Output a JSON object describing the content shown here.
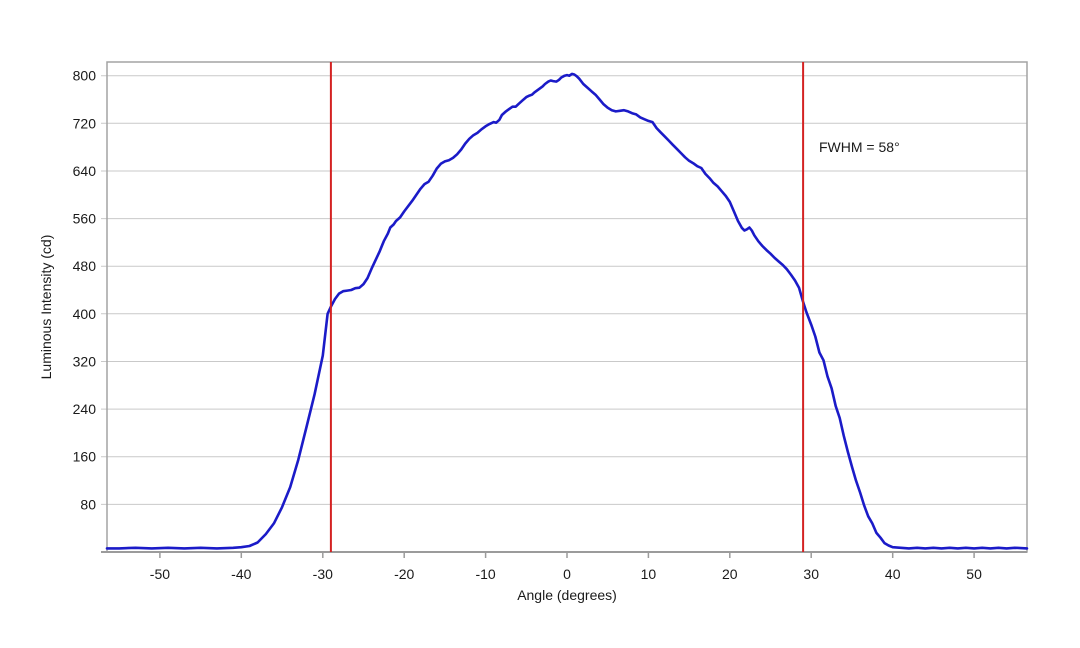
{
  "chart_data": {
    "type": "line",
    "title": "",
    "xlabel": "Angle (degrees)",
    "ylabel": "Luminous Intensity (cd)",
    "xlim": [
      -56.5,
      56.5
    ],
    "ylim": [
      0,
      823
    ],
    "x_ticks": [
      -50,
      -40,
      -30,
      -20,
      -10,
      0,
      10,
      20,
      30,
      40,
      50
    ],
    "y_ticks": [
      80,
      160,
      240,
      320,
      400,
      480,
      560,
      640,
      720,
      800
    ],
    "grid": "horizontal-only",
    "legend": "none",
    "annotation": {
      "text": "FWHM = 58°",
      "x_deg": 31,
      "y_cd": 680
    },
    "fwhm_lines_deg": [
      -29,
      29
    ],
    "colors": {
      "curve": "#1b1bc8",
      "fwhm_line": "#d42222",
      "grid": "#c9c9c9",
      "border": "#a3a3a3",
      "axis": "#9b9b9b",
      "text": "#1a1a1a",
      "background": "#ffffff"
    },
    "series": [
      {
        "name": "luminous-intensity-profile",
        "points": [
          [
            -56.5,
            6
          ],
          [
            -55,
            6
          ],
          [
            -53,
            7
          ],
          [
            -51,
            6
          ],
          [
            -49,
            7
          ],
          [
            -47,
            6
          ],
          [
            -45,
            7
          ],
          [
            -43,
            6
          ],
          [
            -41,
            7
          ],
          [
            -40,
            8
          ],
          [
            -39,
            10
          ],
          [
            -38,
            16
          ],
          [
            -37,
            30
          ],
          [
            -36,
            48
          ],
          [
            -35,
            75
          ],
          [
            -34,
            109
          ],
          [
            -33,
            155
          ],
          [
            -32,
            210
          ],
          [
            -31,
            265
          ],
          [
            -30,
            330
          ],
          [
            -29.4,
            400
          ],
          [
            -29,
            412
          ],
          [
            -28.5,
            425
          ],
          [
            -28,
            434
          ],
          [
            -27.5,
            438
          ],
          [
            -27,
            439
          ],
          [
            -26.5,
            440
          ],
          [
            -26,
            443
          ],
          [
            -25.5,
            444
          ],
          [
            -25,
            450
          ],
          [
            -24.5,
            460
          ],
          [
            -24,
            476
          ],
          [
            -23,
            505
          ],
          [
            -22.5,
            522
          ],
          [
            -22,
            535
          ],
          [
            -21.7,
            545
          ],
          [
            -21.3,
            550
          ],
          [
            -21,
            556
          ],
          [
            -20.5,
            562
          ],
          [
            -20,
            572
          ],
          [
            -19,
            590
          ],
          [
            -18,
            610
          ],
          [
            -17.5,
            618
          ],
          [
            -17,
            622
          ],
          [
            -16.5,
            632
          ],
          [
            -16,
            644
          ],
          [
            -15.5,
            652
          ],
          [
            -15,
            656
          ],
          [
            -14.5,
            658
          ],
          [
            -14,
            662
          ],
          [
            -13.5,
            668
          ],
          [
            -13,
            676
          ],
          [
            -12.5,
            686
          ],
          [
            -12,
            694
          ],
          [
            -11.5,
            700
          ],
          [
            -11,
            704
          ],
          [
            -10.5,
            710
          ],
          [
            -10,
            715
          ],
          [
            -9.5,
            719
          ],
          [
            -9,
            722
          ],
          [
            -8.7,
            721
          ],
          [
            -8.3,
            726
          ],
          [
            -8,
            734
          ],
          [
            -7.5,
            740
          ],
          [
            -7,
            745
          ],
          [
            -6.7,
            748
          ],
          [
            -6.3,
            748
          ],
          [
            -6,
            752
          ],
          [
            -5.5,
            758
          ],
          [
            -5,
            764
          ],
          [
            -4.7,
            766
          ],
          [
            -4.3,
            768
          ],
          [
            -4,
            772
          ],
          [
            -3.5,
            777
          ],
          [
            -3,
            782
          ],
          [
            -2.7,
            786
          ],
          [
            -2.3,
            790
          ],
          [
            -2,
            792
          ],
          [
            -1.7,
            791
          ],
          [
            -1.3,
            790
          ],
          [
            -1,
            793
          ],
          [
            -0.7,
            797
          ],
          [
            -0.3,
            800
          ],
          [
            0,
            801
          ],
          [
            0.3,
            800
          ],
          [
            0.6,
            803
          ],
          [
            0.9,
            802
          ],
          [
            1.2,
            799
          ],
          [
            1.5,
            795
          ],
          [
            2,
            786
          ],
          [
            2.5,
            780
          ],
          [
            3,
            774
          ],
          [
            3.5,
            768
          ],
          [
            4,
            760
          ],
          [
            4.5,
            752
          ],
          [
            5,
            746
          ],
          [
            5.5,
            742
          ],
          [
            6,
            740
          ],
          [
            6.5,
            741
          ],
          [
            7,
            742
          ],
          [
            7.5,
            740
          ],
          [
            8,
            737
          ],
          [
            8.5,
            735
          ],
          [
            9,
            730
          ],
          [
            9.5,
            727
          ],
          [
            10,
            724
          ],
          [
            10.5,
            722
          ],
          [
            11,
            712
          ],
          [
            11.5,
            705
          ],
          [
            12,
            698
          ],
          [
            12.5,
            691
          ],
          [
            13,
            684
          ],
          [
            13.5,
            677
          ],
          [
            14,
            670
          ],
          [
            14.5,
            663
          ],
          [
            15,
            657
          ],
          [
            15.5,
            653
          ],
          [
            16,
            648
          ],
          [
            16.5,
            645
          ],
          [
            17,
            635
          ],
          [
            17.5,
            628
          ],
          [
            18,
            620
          ],
          [
            18.5,
            614
          ],
          [
            19,
            606
          ],
          [
            19.5,
            598
          ],
          [
            20,
            588
          ],
          [
            20.5,
            572
          ],
          [
            21,
            556
          ],
          [
            21.5,
            544
          ],
          [
            21.8,
            540
          ],
          [
            22.1,
            542
          ],
          [
            22.4,
            545
          ],
          [
            22.7,
            540
          ],
          [
            23,
            532
          ],
          [
            23.5,
            522
          ],
          [
            24,
            514
          ],
          [
            24.5,
            507
          ],
          [
            25,
            501
          ],
          [
            25.5,
            494
          ],
          [
            26,
            488
          ],
          [
            26.5,
            482
          ],
          [
            27,
            475
          ],
          [
            27.5,
            466
          ],
          [
            28,
            456
          ],
          [
            28.5,
            444
          ],
          [
            29,
            420
          ],
          [
            29.4,
            403
          ],
          [
            30,
            382
          ],
          [
            30.5,
            362
          ],
          [
            31,
            335
          ],
          [
            31.5,
            322
          ],
          [
            32,
            295
          ],
          [
            32.5,
            275
          ],
          [
            33,
            245
          ],
          [
            33.5,
            225
          ],
          [
            34,
            195
          ],
          [
            34.5,
            168
          ],
          [
            35,
            143
          ],
          [
            35.5,
            120
          ],
          [
            36,
            100
          ],
          [
            36.5,
            78
          ],
          [
            37,
            60
          ],
          [
            37.5,
            48
          ],
          [
            38,
            32
          ],
          [
            38.5,
            24
          ],
          [
            39,
            15
          ],
          [
            39.5,
            11
          ],
          [
            40,
            8
          ],
          [
            41,
            7
          ],
          [
            42,
            6
          ],
          [
            43,
            7
          ],
          [
            44,
            6
          ],
          [
            45,
            7
          ],
          [
            46,
            6
          ],
          [
            47,
            7
          ],
          [
            48,
            6
          ],
          [
            49,
            7
          ],
          [
            50,
            6
          ],
          [
            51,
            7
          ],
          [
            52,
            6
          ],
          [
            53,
            7
          ],
          [
            54,
            6
          ],
          [
            55,
            7
          ],
          [
            56.5,
            6
          ]
        ]
      }
    ]
  }
}
